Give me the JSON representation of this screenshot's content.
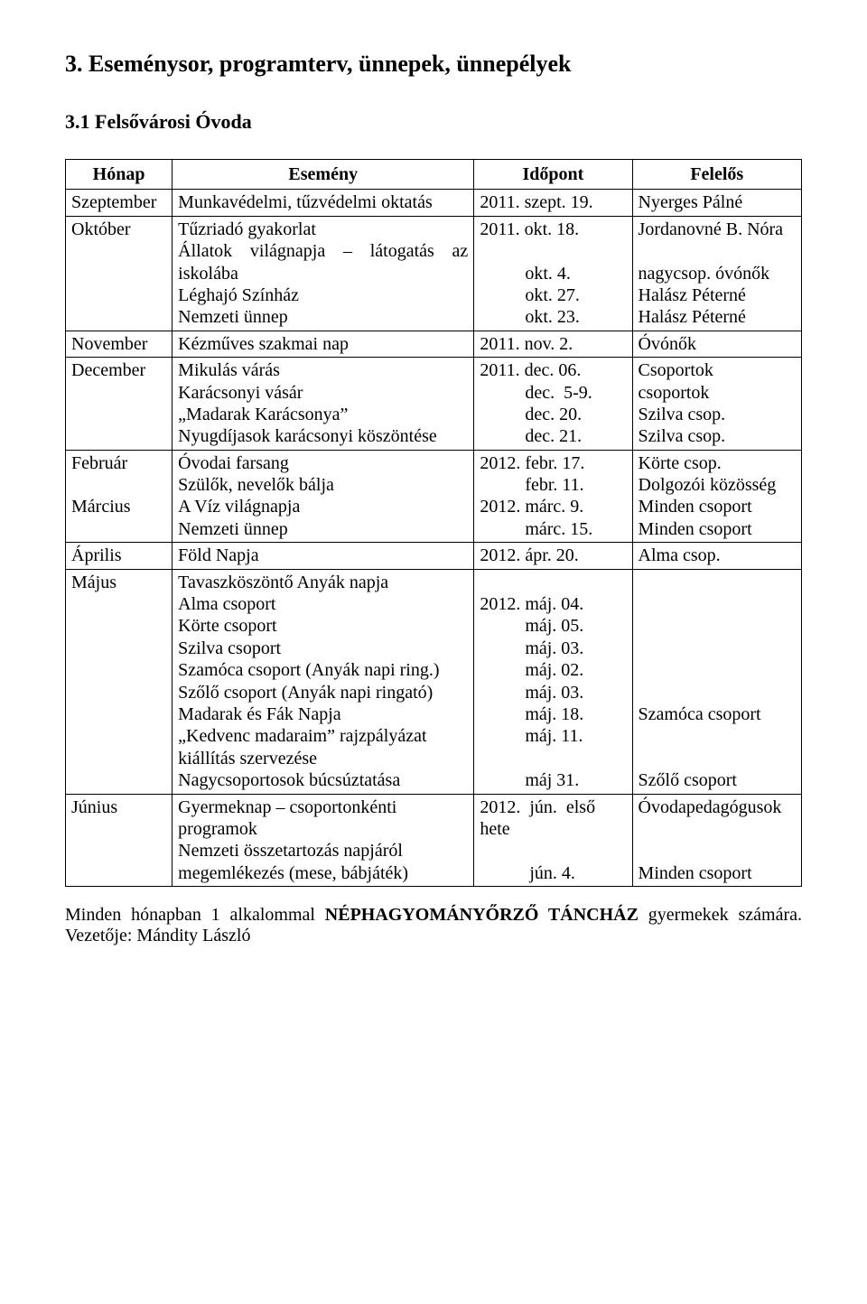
{
  "heading_main": "3. Eseménysor, programterv, ünnepek, ünnepélyek",
  "heading_sub": "3.1 Felsővárosi Óvoda",
  "headers": {
    "month": "Hónap",
    "event": "Esemény",
    "date": "Időpont",
    "resp": "Felelős"
  },
  "rows": [
    {
      "month": "Szeptember",
      "event": "Munkavédelmi, tűzvédelmi oktatás",
      "dates": "2011. szept. 19.",
      "resp": "Nyerges Pálné"
    },
    {
      "month": "Október",
      "event": "Tűzriadó gyakorlat\nÁllatok világnapja – látogatás az iskolába\nLéghajó Színház\nNemzeti ünnep",
      "event_justify": true,
      "dates": "2011. okt. 18.\n\n          okt. 4.\n          okt. 27.\n          okt. 23.",
      "resp": "Jordanovné B. Nóra\n\nnagycsop. óvónők\nHalász Péterné\nHalász Péterné"
    },
    {
      "month": "November",
      "event": "Kézműves szakmai nap",
      "dates": "2011. nov. 2.",
      "resp": "Óvónők"
    },
    {
      "month": "December",
      "event": "Mikulás várás\nKarácsonyi vásár\n„Madarak Karácsonya”\nNyugdíjasok karácsonyi köszöntése",
      "dates": "2011. dec. 06.\n          dec.  5-9.\n          dec. 20.\n          dec. 21.",
      "resp": "Csoportok\ncsoportok\nSzilva csop.\nSzilva csop."
    },
    {
      "month": "Február\n\nMárcius",
      "event": "Óvodai farsang\nSzülők, nevelők bálja\nA Víz világnapja\nNemzeti ünnep",
      "dates": "2012. febr. 17.\n          febr. 11.\n2012. márc. 9.\n          márc. 15.",
      "resp": "Körte csop.\nDolgozói közösség\nMinden csoport\nMinden csoport"
    },
    {
      "month": "Április",
      "event": "Föld Napja",
      "dates": "2012. ápr. 20.",
      "resp": "Alma csop."
    },
    {
      "month": "Május",
      "event": "Tavaszköszöntő Anyák napja\nAlma csoport\nKörte csoport\nSzilva csoport\nSzamóca csoport (Anyák napi ring.)\nSzőlő csoport (Anyák napi ringató)\nMadarak és Fák Napja\n„Kedvenc madaraim” rajzpályázat kiállítás szervezése\nNagycsoportosok búcsúztatása",
      "dates": "\n2012. máj. 04.\n          máj. 05.\n          máj. 03.\n          máj. 02.\n          máj. 03.\n          máj. 18.\n          máj. 11.\n\n          máj 31.",
      "resp": "\n\n\n\n\n\nSzamóca csoport\n\n\nSzőlő csoport"
    },
    {
      "month": "Június",
      "event": "Gyermeknap – csoportonkénti programok\nNemzeti összetartozás napjáról megemlékezés (mese, bábjáték)",
      "dates": "2012.  jún.  első\nhete\n\n           jún. 4.",
      "resp": "Óvodapedagógusok\n\n\nMinden csoport"
    }
  ],
  "footnote_pre": "Minden hónapban 1 alkalommal ",
  "footnote_bold": "NÉPHAGYOMÁNYŐRZŐ TÁNCHÁZ",
  "footnote_post": " gyermekek számára. Vezetője: Mándity László"
}
